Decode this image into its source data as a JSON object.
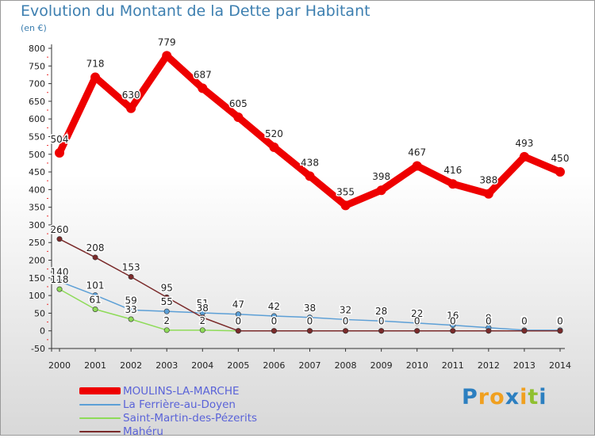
{
  "header": {
    "title": "Evolution du Montant de la Dette par Habitant",
    "unit": "(en €)"
  },
  "brand": {
    "letters": [
      "P",
      "r",
      "o",
      "x",
      "i",
      "t",
      "i"
    ],
    "colors": [
      "#2c7fc0",
      "#f0a020",
      "#f0a020",
      "#2c7fc0",
      "#f0a020",
      "#90c030",
      "#2c7fc0"
    ]
  },
  "chart_data": {
    "type": "line",
    "x": [
      "2000",
      "2001",
      "2002",
      "2003",
      "2004",
      "2005",
      "2006",
      "2007",
      "2008",
      "2009",
      "2010",
      "2011",
      "2012",
      "2013",
      "2014"
    ],
    "ylim": [
      -50,
      800
    ],
    "yticks": [
      -50,
      0,
      50,
      100,
      150,
      200,
      250,
      300,
      350,
      400,
      450,
      500,
      550,
      600,
      650,
      700,
      750,
      800
    ],
    "grid": false,
    "legend_position": "bottom-left",
    "series": [
      {
        "name": "MOULINS-LA-MARCHE",
        "color": "#ee0000",
        "values": [
          504,
          718,
          630,
          779,
          687,
          605,
          520,
          438,
          355,
          398,
          467,
          416,
          388,
          493,
          450
        ],
        "labels": [
          "504",
          "718",
          "630",
          "779",
          "687",
          "605",
          "520",
          "438",
          "355",
          "398",
          "467",
          "416",
          "388",
          "493",
          "450"
        ]
      },
      {
        "name": "La Ferrière-au-Doyen",
        "color": "#5c9fd6",
        "values": [
          140,
          101,
          59,
          55,
          51,
          47,
          42,
          38,
          32,
          28,
          22,
          16,
          9,
          2,
          2
        ],
        "labels": [
          "140",
          "101",
          "59",
          "55",
          "51",
          "47",
          "42",
          "38",
          "32",
          "28",
          "22",
          "16",
          "9",
          "2",
          "2"
        ]
      },
      {
        "name": "Saint-Martin-des-Pézerits",
        "color": "#8edb58",
        "values": [
          118,
          61,
          33,
          2,
          2,
          0,
          0,
          0,
          0,
          0,
          0,
          0,
          0,
          0,
          0
        ],
        "labels": [
          "118",
          "61",
          "33",
          "2",
          "2",
          "",
          "",
          "",
          "",
          "",
          "",
          "",
          "",
          "",
          ""
        ]
      },
      {
        "name": "Mahéru",
        "color": "#7a2a2a",
        "values": [
          260,
          208,
          153,
          95,
          38,
          0,
          0,
          0,
          0,
          0,
          0,
          0,
          0,
          0,
          0
        ],
        "labels": [
          "260",
          "208",
          "153",
          "95",
          "38",
          "0",
          "0",
          "0",
          "0",
          "0",
          "0",
          "0",
          "0",
          "0",
          "0"
        ]
      }
    ]
  }
}
